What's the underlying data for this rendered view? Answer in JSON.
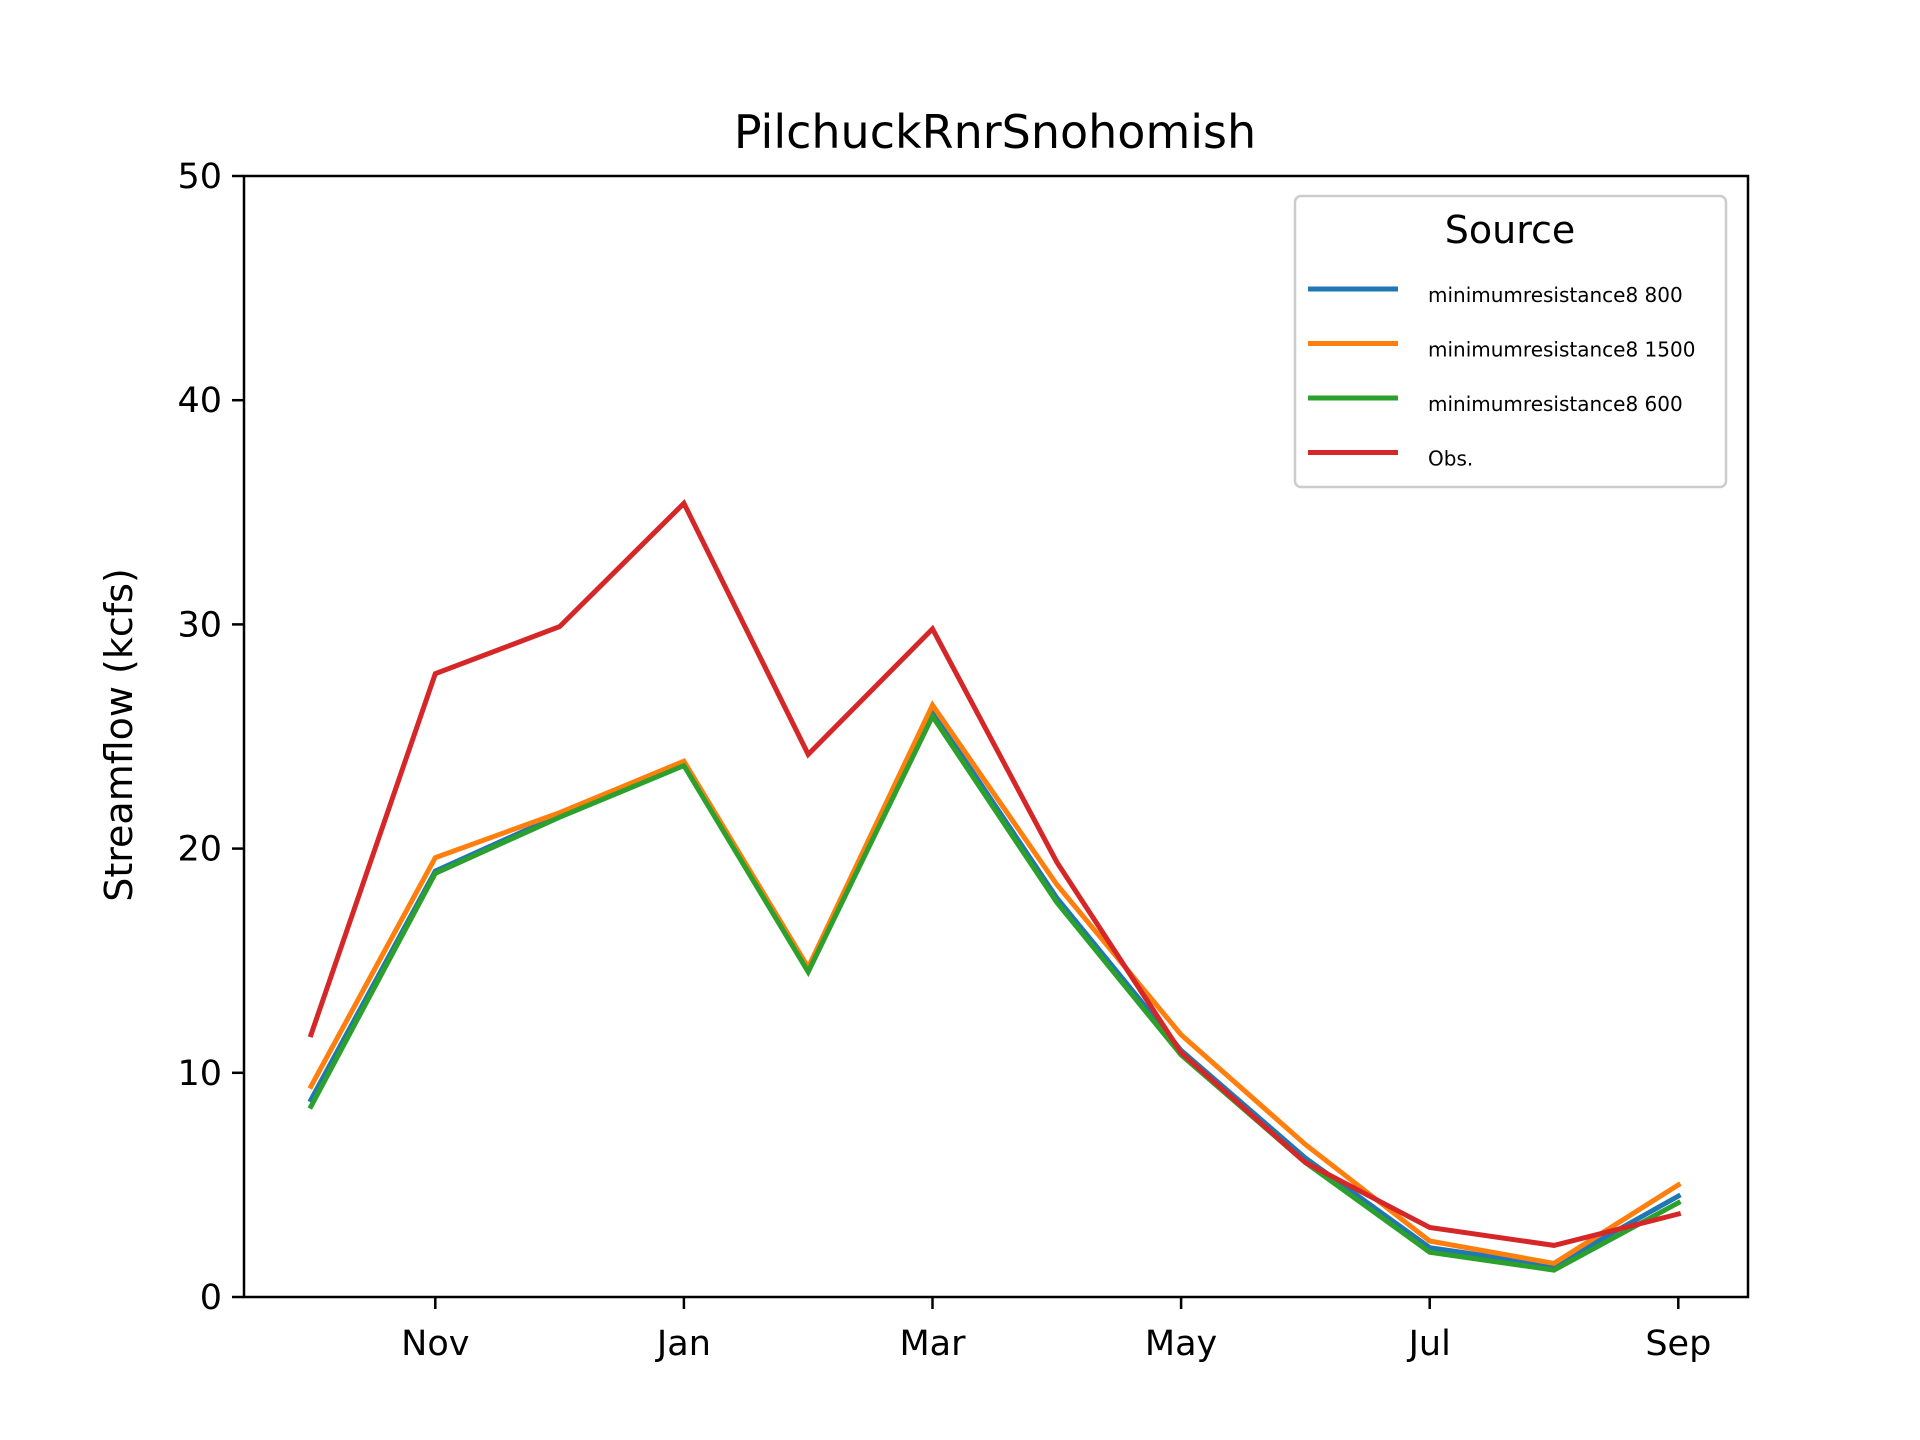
{
  "chart_data": {
    "type": "line",
    "title": "PilchuckRnrSnohomish",
    "xlabel": "",
    "ylabel": "Streamflow (kcfs)",
    "ylim": [
      0,
      50
    ],
    "yticks": [
      0,
      10,
      20,
      30,
      40,
      50
    ],
    "x": [
      "Oct",
      "Nov",
      "Dec",
      "Jan",
      "Feb",
      "Mar",
      "Apr",
      "May",
      "Jun",
      "Jul",
      "Aug",
      "Sep"
    ],
    "xtick_labels": [
      "Nov",
      "Jan",
      "Mar",
      "May",
      "Jul",
      "Sep"
    ],
    "legend": {
      "title": "Source",
      "position": "upper right"
    },
    "series": [
      {
        "name": "minimumresistance8 800",
        "color": "#1f77b4",
        "values": [
          8.8,
          19.0,
          21.5,
          23.8,
          14.6,
          26.1,
          17.8,
          11.0,
          6.2,
          2.2,
          1.4,
          4.5
        ]
      },
      {
        "name": "minimumresistance8 1500",
        "color": "#ff7f0e",
        "values": [
          9.4,
          19.6,
          21.6,
          23.9,
          14.7,
          26.4,
          18.4,
          11.7,
          6.8,
          2.5,
          1.5,
          5.0
        ]
      },
      {
        "name": "minimumresistance8 600",
        "color": "#2ca02c",
        "values": [
          8.5,
          18.9,
          21.4,
          23.7,
          14.5,
          25.9,
          17.6,
          10.8,
          6.0,
          2.0,
          1.2,
          4.2
        ]
      },
      {
        "name": "Obs.",
        "color": "#d62728",
        "values": [
          11.7,
          27.8,
          29.9,
          35.4,
          24.2,
          29.8,
          19.4,
          10.9,
          6.0,
          3.1,
          2.3,
          3.7
        ]
      }
    ]
  }
}
